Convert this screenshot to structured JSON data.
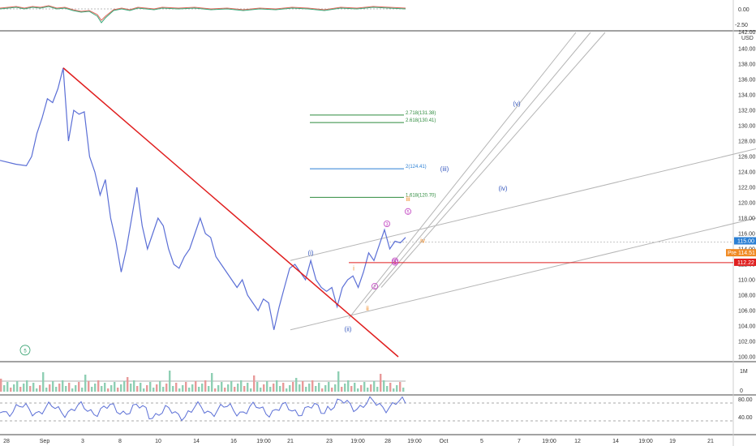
{
  "chart_data": {
    "type": "line",
    "instrument_unit": "USD",
    "x_ticks": [
      "28",
      "Sep",
      "3",
      "8",
      "10",
      "14",
      "16",
      "19:00",
      "21",
      "23",
      "19:00",
      "28",
      "19:00",
      "Oct",
      "5",
      "7",
      "19:00",
      "12",
      "14",
      "19:00",
      "19",
      "21"
    ],
    "y_ticks": [
      100,
      102,
      104,
      106,
      108,
      110,
      112,
      114,
      116,
      118,
      120,
      122,
      124,
      126,
      128,
      130,
      132,
      134,
      136,
      138,
      140
    ],
    "y_top_clipped": "142.00",
    "ylim": [
      100,
      142
    ],
    "price_path": [
      [
        0,
        125.5
      ],
      [
        3,
        125
      ],
      [
        5,
        124.8
      ],
      [
        6,
        126
      ],
      [
        7,
        129
      ],
      [
        8,
        131
      ],
      [
        9,
        133.5
      ],
      [
        10,
        133
      ],
      [
        11,
        134.8
      ],
      [
        12,
        137.5
      ],
      [
        13,
        128
      ],
      [
        14,
        132
      ],
      [
        15,
        131.5
      ],
      [
        16,
        131.8
      ],
      [
        17,
        126
      ],
      [
        18,
        124
      ],
      [
        19,
        121
      ],
      [
        20,
        123
      ],
      [
        21,
        118
      ],
      [
        22,
        115
      ],
      [
        23,
        111
      ],
      [
        24,
        114
      ],
      [
        25,
        118
      ],
      [
        26,
        122
      ],
      [
        27,
        117
      ],
      [
        28,
        114
      ],
      [
        29,
        116
      ],
      [
        30,
        118
      ],
      [
        31,
        117
      ],
      [
        32,
        114
      ],
      [
        33,
        112
      ],
      [
        34,
        111.5
      ],
      [
        35,
        113
      ],
      [
        36,
        114
      ],
      [
        37,
        116
      ],
      [
        38,
        118
      ],
      [
        39,
        116
      ],
      [
        40,
        115.5
      ],
      [
        41,
        113
      ],
      [
        42,
        112
      ],
      [
        43,
        111
      ],
      [
        44,
        110
      ],
      [
        45,
        109
      ],
      [
        46,
        110
      ],
      [
        47,
        108
      ],
      [
        48,
        107
      ],
      [
        49,
        106
      ],
      [
        50,
        107.5
      ],
      [
        51,
        107
      ],
      [
        52,
        103.5
      ],
      [
        53,
        106.5
      ],
      [
        54,
        109
      ],
      [
        55,
        111.5
      ],
      [
        56,
        112
      ],
      [
        57,
        111
      ],
      [
        58,
        110
      ],
      [
        59,
        112.5
      ],
      [
        60,
        110
      ],
      [
        61,
        109
      ],
      [
        62,
        108.5
      ],
      [
        63,
        109
      ],
      [
        64,
        106.5
      ],
      [
        65,
        109
      ],
      [
        66,
        110
      ],
      [
        67,
        110.5
      ],
      [
        68,
        109
      ],
      [
        69,
        111
      ],
      [
        70,
        113.5
      ],
      [
        71,
        112.5
      ],
      [
        72,
        114.5
      ],
      [
        73,
        116.5
      ],
      [
        74,
        114
      ],
      [
        75,
        115
      ],
      [
        76,
        114.8
      ],
      [
        77,
        115.5
      ]
    ],
    "price_label": "115.00",
    "premarket_label": "114.51",
    "premarket_tag": "Pre",
    "support_label": "112.22",
    "fib_levels": [
      {
        "label": "2.718(131.38)",
        "value": 131.38,
        "color": "#2e8b3e"
      },
      {
        "label": "2.618(130.41)",
        "value": 130.41,
        "color": "#2e8b3e"
      },
      {
        "label": "2(124.41)",
        "value": 124.41,
        "color": "#2a7fd4"
      },
      {
        "label": "1.618(120.70)",
        "value": 120.7,
        "color": "#2e8b3e"
      }
    ],
    "wave_labels": [
      {
        "text": "(i)",
        "color": "#3a5bbf"
      },
      {
        "text": "(ii)",
        "color": "#3a5bbf"
      },
      {
        "text": "(iii)",
        "color": "#3a5bbf"
      },
      {
        "text": "(iv)",
        "color": "#3a5bbf"
      },
      {
        "text": "(v)",
        "color": "#3a5bbf"
      },
      {
        "text": "i",
        "color": "#f08a24"
      },
      {
        "text": "ii",
        "color": "#f08a24"
      },
      {
        "text": "iii",
        "color": "#f08a24"
      },
      {
        "text": "iv",
        "color": "#f08a24"
      },
      {
        "text": "1",
        "color": "#c040c0"
      },
      {
        "text": "2",
        "color": "#c040c0"
      },
      {
        "text": "3",
        "color": "#c040c0"
      },
      {
        "text": "4",
        "color": "#c040c0"
      },
      {
        "text": "5",
        "color": "#c040c0"
      },
      {
        "text": "5",
        "color": "#2e9e6a"
      }
    ],
    "top_panel_ticks": [
      "0.00",
      "-2.50"
    ],
    "volume_panel_ticks": [
      "1M",
      "0"
    ],
    "rsi_panel_ticks": [
      "80.00",
      "40.00"
    ],
    "colors": {
      "price": "#5b6fd6",
      "downtrend": "#e01e1e",
      "channel": "#b5b5b5",
      "support": "#e01e1e",
      "price_tag": "#2a7fd4",
      "premarket_tag": "#f08a24",
      "support_tag": "#e01e1e"
    },
    "grid": false
  }
}
